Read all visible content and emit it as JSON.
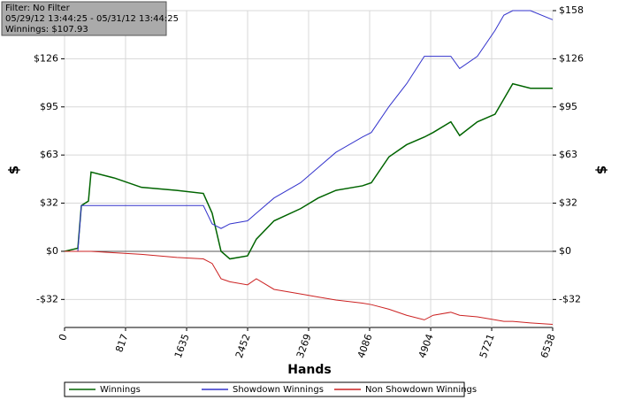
{
  "chart_data": {
    "type": "line",
    "info": [
      "Filter: No Filter",
      "05/29/12 13:44:25 - 05/31/12 13:44:25",
      "Winnings: $107.93"
    ],
    "xlabel": "Hands",
    "ylabel": "$",
    "x": [
      0,
      178,
      225,
      320,
      355,
      675,
      1030,
      1504,
      1859,
      1977,
      2096,
      2214,
      2451,
      2569,
      2806,
      3161,
      3398,
      3635,
      3990,
      4109,
      4345,
      4582,
      4819,
      4937,
      5174,
      5292,
      5529,
      5766,
      5884,
      6003,
      6240,
      6538
    ],
    "series": [
      {
        "name": "Winnings",
        "color": "#006400",
        "values": [
          0,
          2,
          30,
          33,
          52,
          48,
          42,
          40,
          38,
          25,
          0,
          -5,
          -3,
          8,
          20,
          28,
          35,
          40,
          43,
          45,
          62,
          70,
          75,
          78,
          85,
          76,
          85,
          90,
          100,
          110,
          107,
          107
        ]
      },
      {
        "name": "Showdown Winnings",
        "color": "#3333cc",
        "values": [
          0,
          0,
          30,
          30,
          30,
          30,
          30,
          30,
          30,
          18,
          15,
          18,
          20,
          25,
          35,
          45,
          55,
          65,
          75,
          78,
          95,
          110,
          128,
          128,
          128,
          120,
          128,
          145,
          155,
          158,
          158,
          152
        ]
      },
      {
        "name": "Non Showdown Winnings",
        "color": "#cc2222",
        "values": [
          0,
          0,
          0,
          0,
          0,
          -1,
          -2,
          -4,
          -5,
          -8,
          -18,
          -20,
          -22,
          -18,
          -25,
          -28,
          -30,
          -32,
          -34,
          -35,
          -38,
          -42,
          -45,
          -42,
          -40,
          -42,
          -43,
          -45,
          -46,
          -46,
          -47,
          -48
        ]
      }
    ],
    "xlim": [
      0,
      6538
    ],
    "xticks": [
      0,
      817,
      1635,
      2452,
      3269,
      4086,
      4904,
      5721,
      6538
    ],
    "ylim": [
      -50,
      158
    ],
    "yticks": [
      {
        "value": -31.6,
        "label": "-$32"
      },
      {
        "value": 0,
        "label": "$0"
      },
      {
        "value": 31.6,
        "label": "$32"
      },
      {
        "value": 63.2,
        "label": "$63"
      },
      {
        "value": 94.8,
        "label": "$95"
      },
      {
        "value": 126.4,
        "label": "$126"
      },
      {
        "value": 158,
        "label": "$158"
      }
    ],
    "grid": true
  }
}
